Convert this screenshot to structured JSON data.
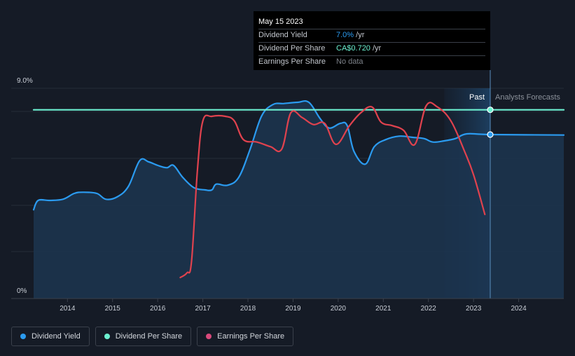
{
  "tooltip": {
    "date": "May 15 2023",
    "rows": [
      {
        "label": "Dividend Yield",
        "value": "7.0%",
        "suffix": " /yr"
      },
      {
        "label": "Dividend Per Share",
        "value": "CA$0.720",
        "suffix": " /yr"
      },
      {
        "label": "Earnings Per Share",
        "value": "No data",
        "suffix": ""
      }
    ]
  },
  "labels": {
    "past": "Past",
    "forecast": "Analysts Forecasts"
  },
  "legend": [
    {
      "label": "Dividend Yield",
      "color": "#2b9bf0"
    },
    {
      "label": "Dividend Per Share",
      "color": "#6cf0d0"
    },
    {
      "label": "Earnings Per Share",
      "color": "#d9497b"
    }
  ],
  "chart_data": {
    "type": "line",
    "title": "",
    "y_axis": {
      "min": 0,
      "max": 9.0,
      "tick_labels": [
        "9.0%",
        "0%"
      ]
    },
    "x_axis": {
      "min": 2013.25,
      "max": 2025.0,
      "tick_labels": [
        "2014",
        "2015",
        "2016",
        "2017",
        "2018",
        "2019",
        "2020",
        "2021",
        "2022",
        "2023",
        "2024"
      ],
      "tick_values": [
        2014,
        2015,
        2016,
        2017,
        2018,
        2019,
        2020,
        2021,
        2022,
        2023,
        2024
      ]
    },
    "forecast_start": 2022.35,
    "cursor_x": 2023.37,
    "series": [
      {
        "name": "Dividend Yield",
        "color": "#2b9bf0",
        "unit": "%",
        "points": [
          [
            2013.25,
            3.8
          ],
          [
            2013.35,
            4.2
          ],
          [
            2013.6,
            4.2
          ],
          [
            2013.9,
            4.25
          ],
          [
            2014.15,
            4.5
          ],
          [
            2014.35,
            4.55
          ],
          [
            2014.65,
            4.5
          ],
          [
            2014.85,
            4.25
          ],
          [
            2015.1,
            4.35
          ],
          [
            2015.35,
            4.8
          ],
          [
            2015.6,
            5.9
          ],
          [
            2015.8,
            5.85
          ],
          [
            2016.0,
            5.7
          ],
          [
            2016.2,
            5.6
          ],
          [
            2016.35,
            5.7
          ],
          [
            2016.55,
            5.2
          ],
          [
            2016.8,
            4.75
          ],
          [
            2017.05,
            4.65
          ],
          [
            2017.2,
            4.65
          ],
          [
            2017.3,
            4.9
          ],
          [
            2017.55,
            4.85
          ],
          [
            2017.8,
            5.2
          ],
          [
            2018.05,
            6.4
          ],
          [
            2018.3,
            7.8
          ],
          [
            2018.55,
            8.3
          ],
          [
            2018.8,
            8.35
          ],
          [
            2019.1,
            8.4
          ],
          [
            2019.35,
            8.4
          ],
          [
            2019.6,
            7.7
          ],
          [
            2019.8,
            7.3
          ],
          [
            2020.05,
            7.5
          ],
          [
            2020.2,
            7.4
          ],
          [
            2020.35,
            6.3
          ],
          [
            2020.6,
            5.75
          ],
          [
            2020.8,
            6.5
          ],
          [
            2021.05,
            6.8
          ],
          [
            2021.35,
            6.95
          ],
          [
            2021.65,
            6.9
          ],
          [
            2021.9,
            6.85
          ],
          [
            2022.1,
            6.7
          ],
          [
            2022.35,
            6.75
          ],
          [
            2022.6,
            6.85
          ],
          [
            2022.85,
            7.05
          ],
          [
            2023.37,
            7.02
          ],
          [
            2025.0,
            7.0
          ]
        ]
      },
      {
        "name": "Dividend Per Share",
        "color": "#6cf0d0",
        "unit": "CA$",
        "points": [
          [
            2013.25,
            8.08
          ],
          [
            2025.0,
            8.08
          ]
        ]
      },
      {
        "name": "Earnings Per Share",
        "color": "#e0424e",
        "unit": "",
        "points": [
          [
            2016.5,
            0.9
          ],
          [
            2016.65,
            1.1
          ],
          [
            2016.75,
            1.6
          ],
          [
            2016.88,
            5.5
          ],
          [
            2017.0,
            7.6
          ],
          [
            2017.2,
            7.8
          ],
          [
            2017.5,
            7.8
          ],
          [
            2017.7,
            7.6
          ],
          [
            2017.9,
            6.8
          ],
          [
            2018.2,
            6.7
          ],
          [
            2018.5,
            6.5
          ],
          [
            2018.75,
            6.4
          ],
          [
            2018.95,
            7.95
          ],
          [
            2019.2,
            7.75
          ],
          [
            2019.45,
            7.45
          ],
          [
            2019.7,
            7.5
          ],
          [
            2019.95,
            6.6
          ],
          [
            2020.25,
            7.4
          ],
          [
            2020.5,
            7.95
          ],
          [
            2020.75,
            8.2
          ],
          [
            2020.95,
            7.55
          ],
          [
            2021.2,
            7.4
          ],
          [
            2021.45,
            7.2
          ],
          [
            2021.7,
            6.6
          ],
          [
            2021.95,
            8.25
          ],
          [
            2022.2,
            8.2
          ],
          [
            2022.5,
            7.6
          ],
          [
            2022.8,
            6.3
          ],
          [
            2023.0,
            5.3
          ],
          [
            2023.25,
            3.6
          ]
        ]
      }
    ]
  }
}
